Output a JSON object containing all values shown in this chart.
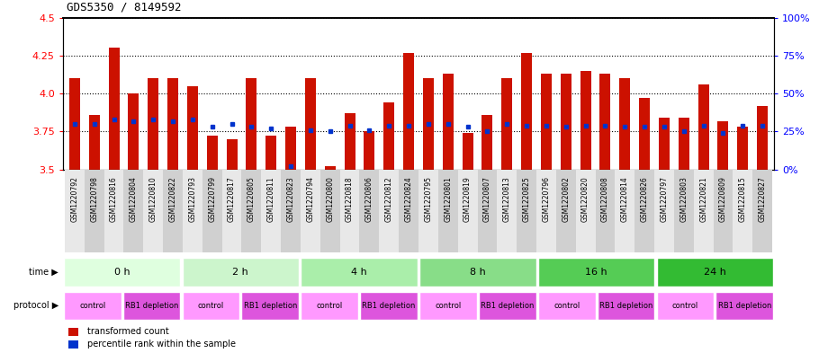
{
  "title": "GDS5350 / 8149592",
  "samples": [
    "GSM1220792",
    "GSM1220798",
    "GSM1220816",
    "GSM1220804",
    "GSM1220810",
    "GSM1220822",
    "GSM1220793",
    "GSM1220799",
    "GSM1220817",
    "GSM1220805",
    "GSM1220811",
    "GSM1220823",
    "GSM1220794",
    "GSM1220800",
    "GSM1220818",
    "GSM1220806",
    "GSM1220812",
    "GSM1220824",
    "GSM1220795",
    "GSM1220801",
    "GSM1220819",
    "GSM1220807",
    "GSM1220813",
    "GSM1220825",
    "GSM1220796",
    "GSM1220802",
    "GSM1220820",
    "GSM1220808",
    "GSM1220814",
    "GSM1220826",
    "GSM1220797",
    "GSM1220803",
    "GSM1220821",
    "GSM1220809",
    "GSM1220815",
    "GSM1220827"
  ],
  "red_values": [
    4.1,
    3.86,
    4.3,
    4.0,
    4.1,
    4.1,
    4.05,
    3.72,
    3.7,
    4.1,
    3.72,
    3.78,
    4.1,
    3.52,
    3.87,
    3.75,
    3.94,
    4.27,
    4.1,
    4.13,
    3.74,
    3.86,
    4.1,
    4.27,
    4.13,
    4.13,
    4.15,
    4.13,
    4.1,
    3.97,
    3.84,
    3.84,
    4.06,
    3.82,
    3.78,
    3.92
  ],
  "blue_values": [
    3.8,
    3.8,
    3.83,
    3.82,
    3.83,
    3.82,
    3.83,
    3.78,
    3.8,
    3.78,
    3.77,
    3.52,
    3.76,
    3.75,
    3.79,
    3.76,
    3.79,
    3.79,
    3.8,
    3.8,
    3.78,
    3.75,
    3.8,
    3.79,
    3.79,
    3.78,
    3.79,
    3.79,
    3.78,
    3.78,
    3.78,
    3.75,
    3.79,
    3.74,
    3.79,
    3.79
  ],
  "time_groups": [
    {
      "label": "0 h",
      "start": 0,
      "end": 6,
      "color": "#dfffdf"
    },
    {
      "label": "2 h",
      "start": 6,
      "end": 12,
      "color": "#ccf5cc"
    },
    {
      "label": "4 h",
      "start": 12,
      "end": 18,
      "color": "#aaeeaa"
    },
    {
      "label": "8 h",
      "start": 18,
      "end": 24,
      "color": "#88dd88"
    },
    {
      "label": "16 h",
      "start": 24,
      "end": 30,
      "color": "#55cc55"
    },
    {
      "label": "24 h",
      "start": 30,
      "end": 36,
      "color": "#33bb33"
    }
  ],
  "protocol_groups": [
    {
      "label": "control",
      "start": 0,
      "end": 3,
      "color": "#ff99ff"
    },
    {
      "label": "RB1 depletion",
      "start": 3,
      "end": 6,
      "color": "#dd55dd"
    },
    {
      "label": "control",
      "start": 6,
      "end": 9,
      "color": "#ff99ff"
    },
    {
      "label": "RB1 depletion",
      "start": 9,
      "end": 12,
      "color": "#dd55dd"
    },
    {
      "label": "control",
      "start": 12,
      "end": 15,
      "color": "#ff99ff"
    },
    {
      "label": "RB1 depletion",
      "start": 15,
      "end": 18,
      "color": "#dd55dd"
    },
    {
      "label": "control",
      "start": 18,
      "end": 21,
      "color": "#ff99ff"
    },
    {
      "label": "RB1 depletion",
      "start": 21,
      "end": 24,
      "color": "#dd55dd"
    },
    {
      "label": "control",
      "start": 24,
      "end": 27,
      "color": "#ff99ff"
    },
    {
      "label": "RB1 depletion",
      "start": 27,
      "end": 30,
      "color": "#dd55dd"
    },
    {
      "label": "control",
      "start": 30,
      "end": 33,
      "color": "#ff99ff"
    },
    {
      "label": "RB1 depletion",
      "start": 33,
      "end": 36,
      "color": "#dd55dd"
    }
  ],
  "ymin": 3.5,
  "ymax": 4.5,
  "yticks_left": [
    3.5,
    3.75,
    4.0,
    4.25,
    4.5
  ],
  "yticks_right": [
    0,
    25,
    50,
    75,
    100
  ],
  "bar_color": "#cc1100",
  "blue_color": "#0033cc",
  "hgrid_vals": [
    3.75,
    4.0,
    4.25,
    4.5
  ]
}
